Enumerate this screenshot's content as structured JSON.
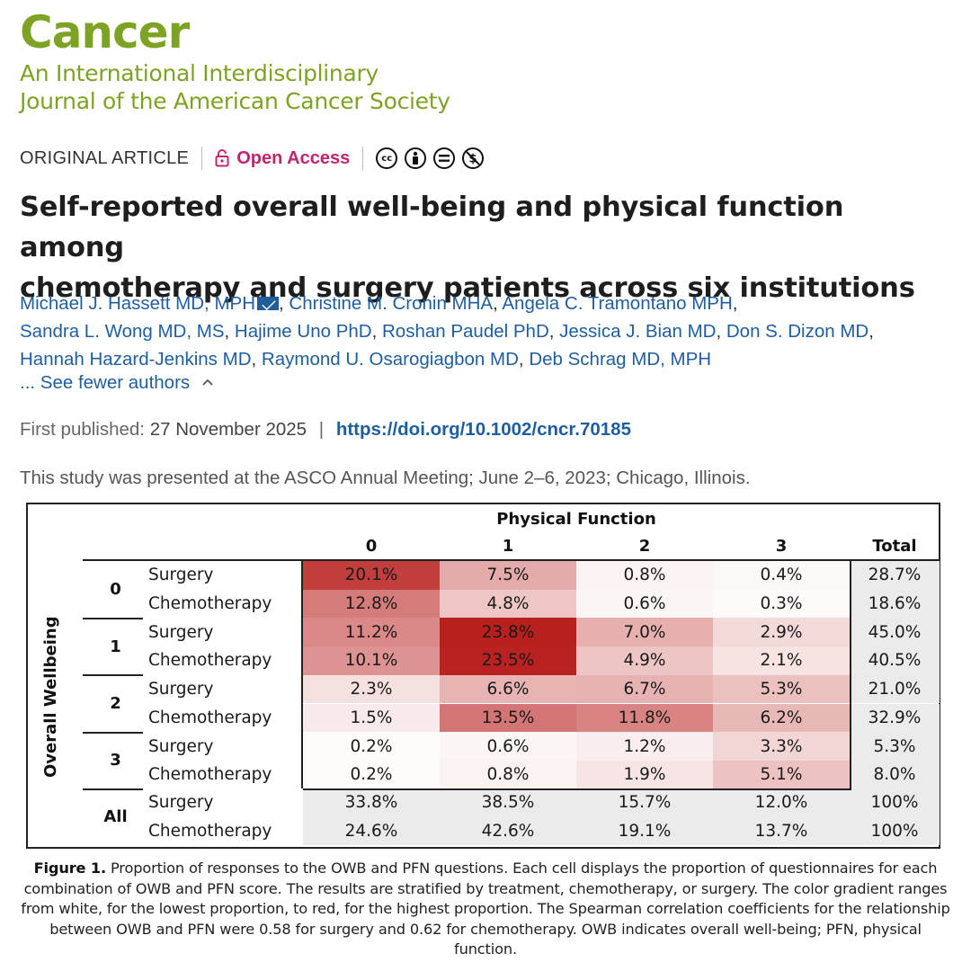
{
  "journal": {
    "name": "Cancer",
    "subtitle_line1": "An International Interdisciplinary",
    "subtitle_line2": "Journal of the American Cancer Society",
    "brand_color": "#7ea224"
  },
  "article": {
    "type": "ORIGINAL ARTICLE",
    "access": "Open Access",
    "license_icons": [
      "cc-icon",
      "by-icon",
      "nd-icon",
      "nc-icon"
    ],
    "title_line1": "Self-reported overall well-being and physical function among",
    "title_line2": "chemotherapy and surgery patients across six institutions",
    "authors": [
      "Michael J. Hassett MD, MPH",
      "Christine M. Cronin MHA",
      "Angela C. Tramontano MPH",
      "Sandra L. Wong MD, MS",
      "Hajime Uno PhD",
      "Roshan Paudel PhD",
      "Jessica J. Bian MD",
      "Don S. Dizon MD",
      "Hannah Hazard-Jenkins MD",
      "Raymond U. Osarogiagbon MD",
      "Deb Schrag MD, MPH"
    ],
    "fewer_authors": "... See fewer authors",
    "first_published_label": "First published:",
    "first_published_date": "27 November 2025",
    "doi": "https://doi.org/10.1002/cncr.70185",
    "presented": "This study was presented at the ASCO Annual Meeting; June 2–6, 2023; Chicago, Illinois."
  },
  "chart_data": {
    "type": "heatmap",
    "title": "Physical Function",
    "ylabel": "Overall Wellbeing",
    "columns": [
      "0",
      "1",
      "2",
      "3"
    ],
    "total_label": "Total",
    "rows": [
      {
        "owb": "0",
        "treatment": "Surgery",
        "values": [
          "20.1%",
          "7.5%",
          "0.8%",
          "0.4%"
        ],
        "total": "28.7%"
      },
      {
        "owb": "0",
        "treatment": "Chemotherapy",
        "values": [
          "12.8%",
          "4.8%",
          "0.6%",
          "0.3%"
        ],
        "total": "18.6%"
      },
      {
        "owb": "1",
        "treatment": "Surgery",
        "values": [
          "11.2%",
          "23.8%",
          "7.0%",
          "2.9%"
        ],
        "total": "45.0%"
      },
      {
        "owb": "1",
        "treatment": "Chemotherapy",
        "values": [
          "10.1%",
          "23.5%",
          "4.9%",
          "2.1%"
        ],
        "total": "40.5%"
      },
      {
        "owb": "2",
        "treatment": "Surgery",
        "values": [
          "2.3%",
          "6.6%",
          "6.7%",
          "5.3%"
        ],
        "total": "21.0%"
      },
      {
        "owb": "2",
        "treatment": "Chemotherapy",
        "values": [
          "1.5%",
          "13.5%",
          "11.8%",
          "6.2%"
        ],
        "total": "32.9%"
      },
      {
        "owb": "3",
        "treatment": "Surgery",
        "values": [
          "0.2%",
          "0.6%",
          "1.2%",
          "3.3%"
        ],
        "total": "5.3%"
      },
      {
        "owb": "3",
        "treatment": "Chemotherapy",
        "values": [
          "0.2%",
          "0.8%",
          "1.9%",
          "5.1%"
        ],
        "total": "8.0%"
      }
    ],
    "all_label": "All",
    "all_rows": [
      {
        "treatment": "Surgery",
        "values": [
          "33.8%",
          "38.5%",
          "15.7%",
          "12.0%"
        ],
        "total": "100%"
      },
      {
        "treatment": "Chemotherapy",
        "values": [
          "24.6%",
          "42.6%",
          "19.1%",
          "13.7%"
        ],
        "total": "100%"
      }
    ],
    "color_low": "#ffffff",
    "color_high": "#b8201e"
  },
  "caption": {
    "label": "Figure 1.",
    "text": "Proportion of responses to the OWB and PFN questions. Each cell displays the proportion of questionnaires for each combination of OWB and PFN score. The results are stratified by treatment, chemotherapy, or surgery. The color gradient ranges from white, for the lowest proportion, to red, for the highest proportion. The Spearman correlation coefficients for the relationship between OWB and PFN were 0.58 for surgery and 0.62 for chemotherapy. OWB indicates overall well-being; PFN, physical function."
  }
}
